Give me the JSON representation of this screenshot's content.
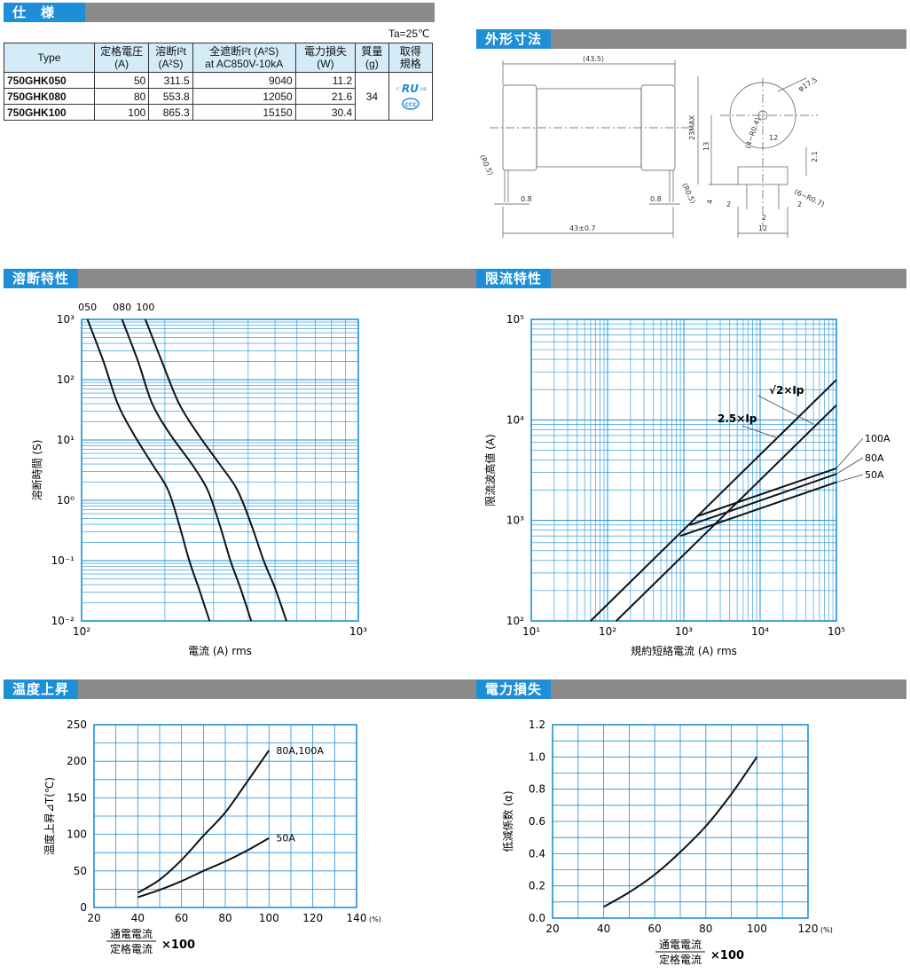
{
  "sections": {
    "spec": "仕　様",
    "dims": "外形寸法",
    "melting": "溶断特性",
    "limiting": "限流特性",
    "temp": "温度上昇",
    "power": "電力損失"
  },
  "spec_table": {
    "ambient": "Ta=25℃",
    "headers": {
      "type": "Type",
      "rated_voltage": [
        "定格電圧",
        "(A)"
      ],
      "i2t": [
        "溶断I²t",
        "(A²S)"
      ],
      "total_i2t": [
        "全遮断I²t (A²S)",
        "at AC850V-10kA"
      ],
      "power_loss": [
        "電力損失",
        "(W)"
      ],
      "mass": [
        "質量",
        "(g)"
      ],
      "cert": [
        "取得",
        "規格"
      ]
    },
    "rows": [
      {
        "type": "750GHK050",
        "current": "50",
        "i2t": "311.5",
        "total": "9040",
        "power": "11.2"
      },
      {
        "type": "750GHK080",
        "current": "80",
        "i2t": "553.8",
        "total": "12050",
        "power": "21.6"
      },
      {
        "type": "750GHK100",
        "current": "100",
        "i2t": "865.3",
        "total": "15150",
        "power": "30.4"
      }
    ],
    "mass": "34",
    "cert_marks": [
      "c",
      "RU",
      "us",
      "CCC"
    ]
  },
  "dimensions": {
    "labels": [
      "(43.5)",
      "43±0.7",
      "0.8",
      "0.8",
      "(R0.5)",
      "(R0.5)",
      "φ17.5",
      "23MAX",
      "13",
      "2.1",
      "4",
      "(4−R0.4)",
      "(6−R0.7)",
      "2",
      "2",
      "2",
      "12",
      "12"
    ]
  },
  "chart_data": [
    {
      "type": "line",
      "title": "溶断特性",
      "xlabel": "電流 (A) rms",
      "ylabel": "溶断時間 (S)",
      "xscale": "log",
      "yscale": "log",
      "xlim": [
        100,
        1000
      ],
      "ylim": [
        0.01,
        1000
      ],
      "xticks": [
        "10²",
        "10³"
      ],
      "yticks": [
        "10³",
        "10²",
        "10¹",
        "10⁰",
        "10⁻¹",
        "10⁻²"
      ],
      "series": [
        {
          "name": "050",
          "points": [
            [
              105,
              1000
            ],
            [
              120,
              200
            ],
            [
              135,
              40
            ],
            [
              155,
              12
            ],
            [
              180,
              4
            ],
            [
              205,
              1.5
            ],
            [
              225,
              0.4
            ],
            [
              245,
              0.1
            ],
            [
              265,
              0.035
            ],
            [
              290,
              0.01
            ]
          ]
        },
        {
          "name": "080",
          "points": [
            [
              140,
              1000
            ],
            [
              160,
              200
            ],
            [
              180,
              40
            ],
            [
              210,
              12
            ],
            [
              250,
              4
            ],
            [
              285,
              1.5
            ],
            [
              315,
              0.4
            ],
            [
              345,
              0.1
            ],
            [
              375,
              0.035
            ],
            [
              410,
              0.01
            ]
          ]
        },
        {
          "name": "100",
          "points": [
            [
              170,
              1000
            ],
            [
              195,
              200
            ],
            [
              225,
              40
            ],
            [
              265,
              12
            ],
            [
              315,
              4
            ],
            [
              365,
              1.5
            ],
            [
              410,
              0.4
            ],
            [
              455,
              0.1
            ],
            [
              500,
              0.035
            ],
            [
              550,
              0.01
            ]
          ]
        }
      ]
    },
    {
      "type": "line",
      "title": "限流特性",
      "xlabel": "規約短絡電流 (A) rms",
      "ylabel": "限流波高値 (A)",
      "xscale": "log",
      "yscale": "log",
      "xlim": [
        10,
        100000
      ],
      "ylim": [
        100,
        100000
      ],
      "xticks": [
        "10¹",
        "10²",
        "10³",
        "10⁴",
        "10⁵"
      ],
      "yticks": [
        "10⁵",
        "10⁴",
        "10³",
        "10²"
      ],
      "annotations": [
        "√2×Ip",
        "2.5×Ip"
      ],
      "series": [
        {
          "name": "√2×Ip",
          "points": [
            [
              130,
              100
            ],
            [
              100000,
              14000
            ]
          ]
        },
        {
          "name": "2.5×Ip",
          "points": [
            [
              60,
              100
            ],
            [
              100000,
              25000
            ]
          ]
        },
        {
          "name": "100A",
          "points": [
            [
              1500,
              1100
            ],
            [
              100000,
              3300
            ]
          ]
        },
        {
          "name": "80A",
          "points": [
            [
              1200,
              900
            ],
            [
              100000,
              2900
            ]
          ]
        },
        {
          "name": "50A",
          "points": [
            [
              900,
              700
            ],
            [
              100000,
              2400
            ]
          ]
        }
      ]
    },
    {
      "type": "line",
      "title": "温度上昇",
      "xlabel": "通電電流 / 定格電流 ×100",
      "xunit": "(%)",
      "ylabel": "温度上昇⊿T(℃)",
      "xlim": [
        20,
        140
      ],
      "ylim": [
        0,
        250
      ],
      "xticks": [
        20,
        40,
        60,
        80,
        100,
        120,
        140
      ],
      "yticks": [
        0,
        50,
        100,
        150,
        200,
        250
      ],
      "series": [
        {
          "name": "80A,100A",
          "points": [
            [
              40,
              20
            ],
            [
              50,
              38
            ],
            [
              60,
              65
            ],
            [
              70,
              98
            ],
            [
              80,
              130
            ],
            [
              90,
              172
            ],
            [
              100,
              215
            ]
          ]
        },
        {
          "name": "50A",
          "points": [
            [
              40,
              14
            ],
            [
              50,
              24
            ],
            [
              60,
              36
            ],
            [
              70,
              50
            ],
            [
              80,
              63
            ],
            [
              90,
              78
            ],
            [
              100,
              95
            ]
          ]
        }
      ]
    },
    {
      "type": "line",
      "title": "電力損失",
      "xlabel": "通電電流 / 定格電流 ×100",
      "xunit": "(%)",
      "ylabel": "低減係数 (α)",
      "xlim": [
        20,
        120
      ],
      "ylim": [
        0,
        1.2
      ],
      "xticks": [
        20,
        40,
        60,
        80,
        100,
        120
      ],
      "yticks": [
        0.0,
        0.2,
        0.4,
        0.6,
        0.8,
        1.0,
        1.2
      ],
      "series": [
        {
          "name": "",
          "points": [
            [
              40,
              0.07
            ],
            [
              50,
              0.16
            ],
            [
              60,
              0.27
            ],
            [
              70,
              0.41
            ],
            [
              80,
              0.57
            ],
            [
              90,
              0.77
            ],
            [
              100,
              1.0
            ]
          ]
        }
      ]
    }
  ]
}
